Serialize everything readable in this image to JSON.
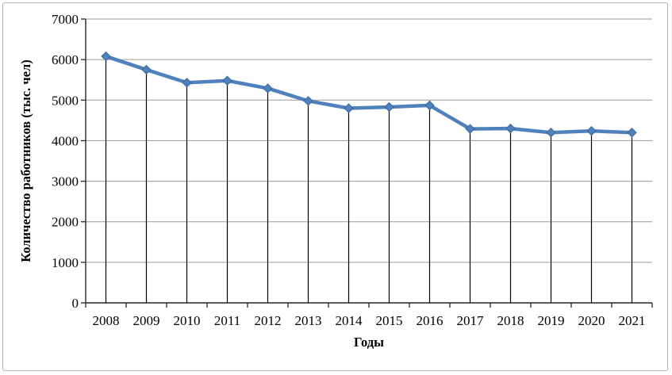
{
  "chart_data": {
    "type": "line",
    "title": "",
    "xlabel": "Годы",
    "ylabel": "Количество работников (тыс. чел)",
    "categories": [
      "2008",
      "2009",
      "2010",
      "2011",
      "2012",
      "2013",
      "2014",
      "2015",
      "2016",
      "2017",
      "2018",
      "2019",
      "2020",
      "2021"
    ],
    "series": [
      {
        "name": "Количество работников",
        "values": [
          6080,
          5750,
          5430,
          5480,
          5290,
          4980,
          4800,
          4830,
          4870,
          4290,
          4300,
          4200,
          4240,
          4200
        ]
      }
    ],
    "ylim": [
      0,
      7000
    ],
    "yticks": [
      0,
      1000,
      2000,
      3000,
      4000,
      5000,
      6000,
      7000
    ],
    "grid": "horizontal",
    "legend_position": "none",
    "marker": "diamond",
    "drop_lines_to_axis": true,
    "colors": {
      "series_line": "#4F81BD",
      "marker_fill": "#4F81BD",
      "marker_edge": "#3A6799",
      "gridline": "#9a9a9a",
      "axis_line": "#262626",
      "drop_line": "#000000",
      "text": "#000000",
      "frame_border": "#b3b3b3",
      "background": "#ffffff"
    }
  }
}
